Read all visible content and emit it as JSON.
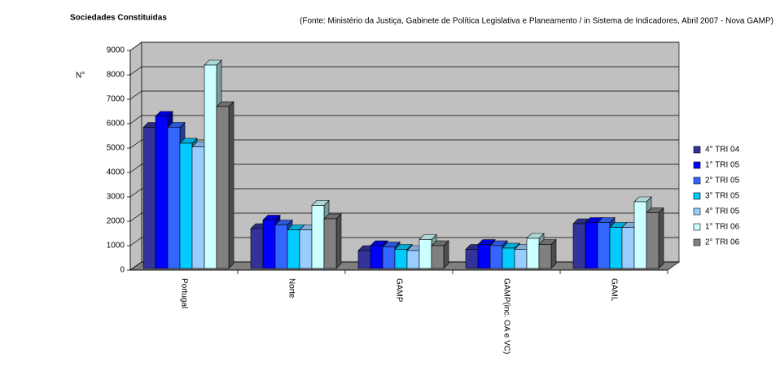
{
  "chart_data": {
    "type": "bar3d",
    "title": "Sociedades Constituidas",
    "subtitle": "(Fonte: Ministério da Justiça, Gabinete de Política Legislativa e Planeamento / in Sistema de Indicadores, Abril 2007 - Nova GAMP)",
    "y_label": "N°",
    "categories": [
      "Portugal",
      "Norte",
      "GAMP",
      "GAMP(inc. OA e VC)",
      "GAML"
    ],
    "series": [
      {
        "name": "4° TRI 04",
        "color": "#333399",
        "values": [
          5850,
          1700,
          800,
          850,
          1900
        ]
      },
      {
        "name": "1° TRI 05",
        "color": "#0000ff",
        "values": [
          6300,
          2050,
          1000,
          1050,
          1950
        ]
      },
      {
        "name": "2° TRI 05",
        "color": "#3366ff",
        "values": [
          5850,
          1850,
          950,
          1000,
          1950
        ]
      },
      {
        "name": "3° TRI 05",
        "color": "#00ccff",
        "values": [
          5200,
          1650,
          850,
          900,
          1750
        ]
      },
      {
        "name": "4° TRI 05",
        "color": "#99ccff",
        "values": [
          5050,
          1650,
          800,
          850,
          1750
        ]
      },
      {
        "name": "1° TRI 06",
        "color": "#ccffff",
        "values": [
          8400,
          2650,
          1250,
          1300,
          2800
        ]
      },
      {
        "name": "2° TRI 06",
        "color": "#808080",
        "values": [
          6700,
          2100,
          1000,
          1050,
          2350
        ]
      }
    ],
    "ylim": [
      0,
      9000
    ],
    "yticks": [
      0,
      1000,
      2000,
      3000,
      4000,
      5000,
      6000,
      7000,
      8000,
      9000
    ],
    "grid": true
  }
}
